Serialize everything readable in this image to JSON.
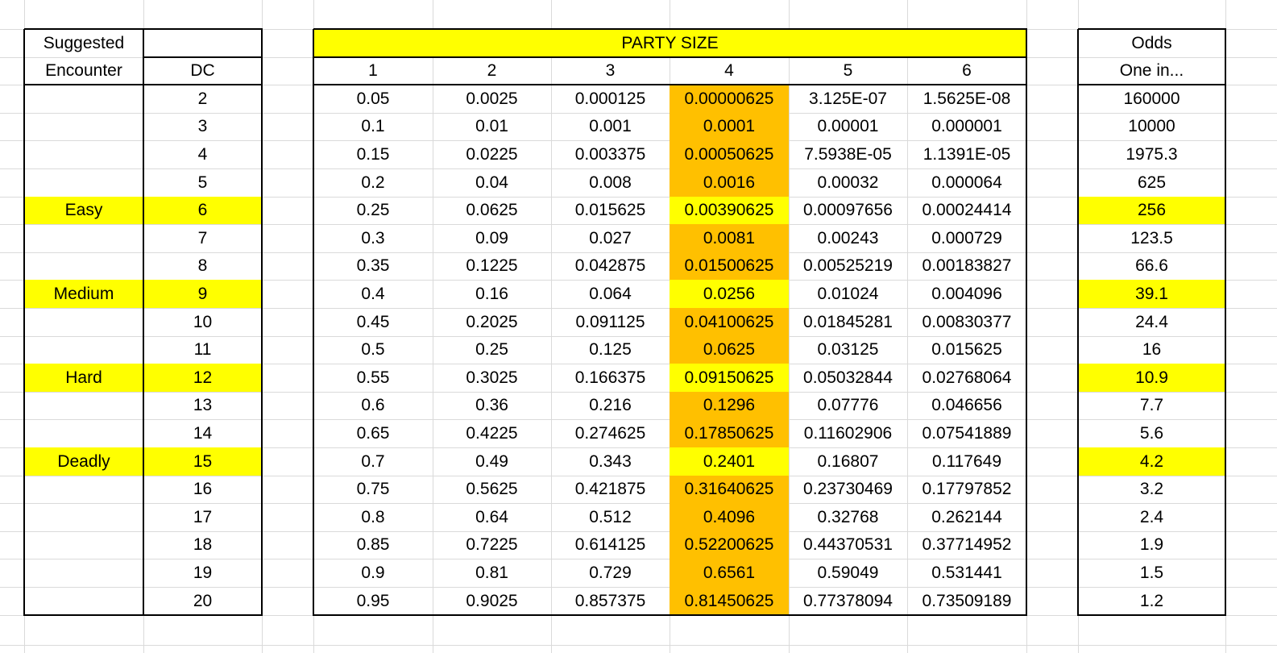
{
  "labels": {
    "suggested": "Suggested",
    "encounter": "Encounter",
    "dc": "DC",
    "party_size": "PARTY SIZE",
    "odds": "Odds",
    "one_in": "One in..."
  },
  "party_sizes": [
    "1",
    "2",
    "3",
    "4",
    "5",
    "6"
  ],
  "rows": [
    {
      "encounter": "",
      "dc": "2",
      "values": [
        "0.05",
        "0.0025",
        "0.000125",
        "0.00000625",
        "3.125E-07",
        "1.5625E-08"
      ],
      "odds": "160000"
    },
    {
      "encounter": "",
      "dc": "3",
      "values": [
        "0.1",
        "0.01",
        "0.001",
        "0.0001",
        "0.00001",
        "0.000001"
      ],
      "odds": "10000"
    },
    {
      "encounter": "",
      "dc": "4",
      "values": [
        "0.15",
        "0.0225",
        "0.003375",
        "0.00050625",
        "7.5938E-05",
        "1.1391E-05"
      ],
      "odds": "1975.3"
    },
    {
      "encounter": "",
      "dc": "5",
      "values": [
        "0.2",
        "0.04",
        "0.008",
        "0.0016",
        "0.00032",
        "0.000064"
      ],
      "odds": "625"
    },
    {
      "encounter": "Easy",
      "dc": "6",
      "values": [
        "0.25",
        "0.0625",
        "0.015625",
        "0.00390625",
        "0.00097656",
        "0.00024414"
      ],
      "odds": "256"
    },
    {
      "encounter": "",
      "dc": "7",
      "values": [
        "0.3",
        "0.09",
        "0.027",
        "0.0081",
        "0.00243",
        "0.000729"
      ],
      "odds": "123.5"
    },
    {
      "encounter": "",
      "dc": "8",
      "values": [
        "0.35",
        "0.1225",
        "0.042875",
        "0.01500625",
        "0.00525219",
        "0.00183827"
      ],
      "odds": "66.6"
    },
    {
      "encounter": "Medium",
      "dc": "9",
      "values": [
        "0.4",
        "0.16",
        "0.064",
        "0.0256",
        "0.01024",
        "0.004096"
      ],
      "odds": "39.1"
    },
    {
      "encounter": "",
      "dc": "10",
      "values": [
        "0.45",
        "0.2025",
        "0.091125",
        "0.04100625",
        "0.01845281",
        "0.00830377"
      ],
      "odds": "24.4"
    },
    {
      "encounter": "",
      "dc": "11",
      "values": [
        "0.5",
        "0.25",
        "0.125",
        "0.0625",
        "0.03125",
        "0.015625"
      ],
      "odds": "16"
    },
    {
      "encounter": "Hard",
      "dc": "12",
      "values": [
        "0.55",
        "0.3025",
        "0.166375",
        "0.09150625",
        "0.05032844",
        "0.02768064"
      ],
      "odds": "10.9"
    },
    {
      "encounter": "",
      "dc": "13",
      "values": [
        "0.6",
        "0.36",
        "0.216",
        "0.1296",
        "0.07776",
        "0.046656"
      ],
      "odds": "7.7"
    },
    {
      "encounter": "",
      "dc": "14",
      "values": [
        "0.65",
        "0.4225",
        "0.274625",
        "0.17850625",
        "0.11602906",
        "0.07541889"
      ],
      "odds": "5.6"
    },
    {
      "encounter": "Deadly",
      "dc": "15",
      "values": [
        "0.7",
        "0.49",
        "0.343",
        "0.2401",
        "0.16807",
        "0.117649"
      ],
      "odds": "4.2"
    },
    {
      "encounter": "",
      "dc": "16",
      "values": [
        "0.75",
        "0.5625",
        "0.421875",
        "0.31640625",
        "0.23730469",
        "0.17797852"
      ],
      "odds": "3.2"
    },
    {
      "encounter": "",
      "dc": "17",
      "values": [
        "0.8",
        "0.64",
        "0.512",
        "0.4096",
        "0.32768",
        "0.262144"
      ],
      "odds": "2.4"
    },
    {
      "encounter": "",
      "dc": "18",
      "values": [
        "0.85",
        "0.7225",
        "0.614125",
        "0.52200625",
        "0.44370531",
        "0.37714952"
      ],
      "odds": "1.9"
    },
    {
      "encounter": "",
      "dc": "19",
      "values": [
        "0.9",
        "0.81",
        "0.729",
        "0.6561",
        "0.59049",
        "0.531441"
      ],
      "odds": "1.5"
    },
    {
      "encounter": "",
      "dc": "20",
      "values": [
        "0.95",
        "0.9025",
        "0.857375",
        "0.81450625",
        "0.77378094",
        "0.73509189"
      ],
      "odds": "1.2"
    }
  ],
  "colors": {
    "highlight_yellow": "#ffff00",
    "party4_orange": "#ffc000",
    "gridline": "#dadada",
    "border": "#000000"
  }
}
